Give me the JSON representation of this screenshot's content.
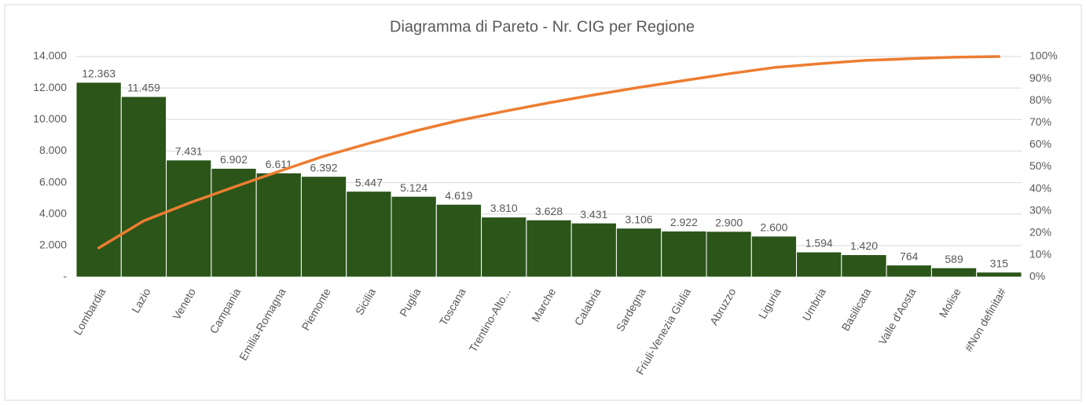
{
  "chart_data": {
    "type": "pareto",
    "title": "Diagramma di Pareto - Nr. CIG per Regione",
    "categories": [
      "Lombardia",
      "Lazio",
      "Veneto",
      "Campania",
      "Emilia-Romagna",
      "Piemonte",
      "Sicilia",
      "Puglia",
      "Toscana",
      "Trentino-Alto...",
      "Marche",
      "Calabria",
      "Sardegna",
      "Friuli-Venezia Giulia",
      "Abruzzo",
      "Liguria",
      "Umbria",
      "Basilicata",
      "Valle d'Aosta",
      "Molise",
      "#Non definita#"
    ],
    "series": [
      {
        "type": "bar",
        "axis": "y",
        "color": "#2b5519",
        "values": [
          12363,
          11459,
          7431,
          6902,
          6611,
          6392,
          5447,
          5124,
          4619,
          3810,
          3628,
          3431,
          3106,
          2922,
          2900,
          2600,
          1594,
          1420,
          764,
          589,
          315
        ],
        "value_labels": [
          "12.363",
          "11.459",
          "7.431",
          "6.902",
          "6.611",
          "6.392",
          "5.447",
          "5.124",
          "4.619",
          "3.810",
          "3.628",
          "3.431",
          "3.106",
          "2.922",
          "2.900",
          "2.600",
          "1.594",
          "1.420",
          "764",
          "589",
          "315"
        ]
      },
      {
        "type": "line",
        "axis": "y2",
        "color": "#ed7d31",
        "values": [
          13.2,
          25.5,
          33.5,
          40.8,
          47.9,
          54.8,
          60.6,
          66.1,
          71.0,
          75.1,
          79.0,
          82.6,
          86.0,
          89.1,
          92.2,
          95.0,
          96.7,
          98.2,
          99.0,
          99.7,
          100
        ]
      }
    ],
    "ylim": [
      0,
      14000
    ],
    "yticks": [
      {
        "value": 0,
        "label": "-"
      },
      {
        "value": 2000,
        "label": "2.000"
      },
      {
        "value": 4000,
        "label": "4.000"
      },
      {
        "value": 6000,
        "label": "6.000"
      },
      {
        "value": 8000,
        "label": "8.000"
      },
      {
        "value": 10000,
        "label": "10.000"
      },
      {
        "value": 12000,
        "label": "12.000"
      },
      {
        "value": 14000,
        "label": "14.000"
      }
    ],
    "y2lim": [
      0,
      100
    ],
    "y2ticks": [
      {
        "value": 0,
        "label": "0%"
      },
      {
        "value": 10,
        "label": "10%"
      },
      {
        "value": 20,
        "label": "20%"
      },
      {
        "value": 30,
        "label": "30%"
      },
      {
        "value": 40,
        "label": "40%"
      },
      {
        "value": 50,
        "label": "50%"
      },
      {
        "value": 60,
        "label": "60%"
      },
      {
        "value": 70,
        "label": "70%"
      },
      {
        "value": 80,
        "label": "80%"
      },
      {
        "value": 90,
        "label": "90%"
      },
      {
        "value": 100,
        "label": "100%"
      }
    ],
    "grid": true
  }
}
